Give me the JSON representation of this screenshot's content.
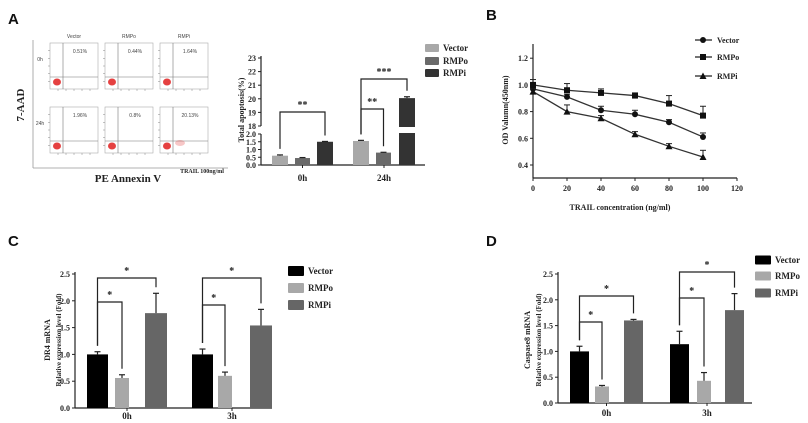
{
  "panels": {
    "A": "A",
    "B": "B",
    "C": "C",
    "D": "D"
  },
  "flow": {
    "columns": [
      "Vector",
      "RMPo",
      "RMPi"
    ],
    "rows": [
      "0h",
      "24h"
    ],
    "percentages": [
      [
        "0.51%",
        "0.44%",
        "1.64%"
      ],
      [
        "1.96%",
        "0.8%",
        "20.13%"
      ]
    ],
    "ylabel": "7-AAD",
    "xlabel": "PE Annexin V",
    "treatment": "TRAIL 100ng/ml",
    "event_color": "#e02020"
  },
  "chart_data": [
    {
      "type": "bar",
      "title": "",
      "ylabel": "Total apoptosis(%)",
      "xlabel": "",
      "categories": [
        "0h",
        "24h"
      ],
      "broken_axis": {
        "lower": [
          0,
          2.0
        ],
        "upper": [
          18,
          23
        ]
      },
      "ytick_labels": [
        "0.0",
        "0.5",
        "1.0",
        "1.5",
        "2.0",
        "18",
        "19",
        "20",
        "21",
        "22",
        "23"
      ],
      "ytick_values": [
        0,
        0.5,
        1.0,
        1.5,
        2.0,
        18,
        19,
        20,
        21,
        22,
        23
      ],
      "legend": "right",
      "series": [
        {
          "name": "Vector",
          "color": "#a8a8a8",
          "values": [
            0.6,
            1.55
          ],
          "errors": [
            0.05,
            0.04
          ]
        },
        {
          "name": "RMPo",
          "color": "#6a6a6a",
          "values": [
            0.45,
            0.8
          ],
          "errors": [
            0.03,
            0.02
          ]
        },
        {
          "name": "RMPi",
          "color": "#333333",
          "values": [
            1.5,
            20.05
          ],
          "errors": [
            0.02,
            0.1
          ]
        }
      ],
      "annotations": [
        {
          "group": 0,
          "from": "Vector",
          "to": "RMPi",
          "label": "**"
        },
        {
          "group": 1,
          "from": "Vector",
          "to": "RMPo",
          "label": "**"
        },
        {
          "group": 1,
          "from": "Vector",
          "to": "RMPi",
          "label": "***"
        }
      ]
    },
    {
      "type": "line",
      "title": "",
      "xlabel": "TRAIL concentration (ng/ml)",
      "ylabel": "OD Valumn(450nm)",
      "xlim": [
        0,
        120
      ],
      "ylim": [
        0.3,
        1.3
      ],
      "xtick_labels": [
        "0",
        "20",
        "40",
        "60",
        "80",
        "100",
        "120"
      ],
      "xtick_values": [
        0,
        20,
        40,
        60,
        80,
        100,
        120
      ],
      "ytick_labels": [
        "0.4",
        "0.6",
        "0.8",
        "1.0",
        "1.2"
      ],
      "ytick_values": [
        0.4,
        0.6,
        0.8,
        1.0,
        1.2
      ],
      "legend": "top-right",
      "x": [
        0,
        20,
        40,
        60,
        80,
        100
      ],
      "series": [
        {
          "name": "Vector",
          "marker": "circle",
          "values": [
            0.97,
            0.91,
            0.81,
            0.78,
            0.72,
            0.61
          ],
          "errors": [
            0.03,
            0.02,
            0.03,
            0.03,
            0.02,
            0.03
          ]
        },
        {
          "name": "RMPo",
          "marker": "square",
          "values": [
            1.0,
            0.96,
            0.94,
            0.92,
            0.86,
            0.77
          ],
          "errors": [
            0.04,
            0.05,
            0.03,
            0.02,
            0.06,
            0.07
          ]
        },
        {
          "name": "RMPi",
          "marker": "triangle",
          "values": [
            0.95,
            0.8,
            0.75,
            0.63,
            0.54,
            0.46
          ],
          "errors": [
            0.02,
            0.05,
            0.02,
            0.02,
            0.02,
            0.05
          ]
        }
      ]
    },
    {
      "type": "bar",
      "title": "",
      "ylabel": "DR4 mRNA",
      "ylabel2": "Relative expression level (Fold)",
      "categories": [
        "0h",
        "3h"
      ],
      "ylim": [
        0,
        2.5
      ],
      "ytick_labels": [
        "0.0",
        "0.5",
        "1.0",
        "1.5",
        "2.0",
        "2.5"
      ],
      "ytick_values": [
        0,
        0.5,
        1.0,
        1.5,
        2.0,
        2.5
      ],
      "legend": "right",
      "series": [
        {
          "name": "Vector",
          "color": "#000000",
          "values": [
            1.0,
            1.0
          ],
          "errors": [
            0.05,
            0.1
          ]
        },
        {
          "name": "RMPo",
          "color": "#a8a8a8",
          "values": [
            0.56,
            0.6
          ],
          "errors": [
            0.06,
            0.07
          ]
        },
        {
          "name": "RMPi",
          "color": "#666666",
          "values": [
            1.77,
            1.54
          ],
          "errors": [
            0.37,
            0.3
          ]
        }
      ],
      "annotations": [
        {
          "group": 0,
          "from": "Vector",
          "to": "RMPi",
          "label": "*"
        },
        {
          "group": 0,
          "from": "Vector",
          "to": "RMPo",
          "label": "*"
        },
        {
          "group": 1,
          "from": "Vector",
          "to": "RMPi",
          "label": "*"
        },
        {
          "group": 1,
          "from": "Vector",
          "to": "RMPo",
          "label": "*"
        }
      ]
    },
    {
      "type": "bar",
      "title": "",
      "ylabel": "Caspase8 mRNA",
      "ylabel2": "Relative expression level (Fold)",
      "categories": [
        "0h",
        "3h"
      ],
      "ylim": [
        0,
        2.5
      ],
      "ytick_labels": [
        "0.0",
        "0.5",
        "1.0",
        "1.5",
        "2.0",
        "2.5"
      ],
      "ytick_values": [
        0,
        0.5,
        1.0,
        1.5,
        2.0,
        2.5
      ],
      "legend": "right",
      "series": [
        {
          "name": "Vector",
          "color": "#000000",
          "values": [
            1.0,
            1.14
          ],
          "errors": [
            0.1,
            0.25
          ]
        },
        {
          "name": "RMPo",
          "color": "#a8a8a8",
          "values": [
            0.32,
            0.43
          ],
          "errors": [
            0.02,
            0.16
          ]
        },
        {
          "name": "RMPi",
          "color": "#666666",
          "values": [
            1.6,
            1.8
          ],
          "errors": [
            0.02,
            0.32
          ]
        }
      ],
      "annotations": [
        {
          "group": 0,
          "from": "Vector",
          "to": "RMPi",
          "label": "*"
        },
        {
          "group": 0,
          "from": "Vector",
          "to": "RMPo",
          "label": "*"
        },
        {
          "group": 1,
          "from": "Vector",
          "to": "RMPi",
          "label": "*"
        },
        {
          "group": 1,
          "from": "Vector",
          "to": "RMPo",
          "label": "*"
        }
      ]
    }
  ]
}
